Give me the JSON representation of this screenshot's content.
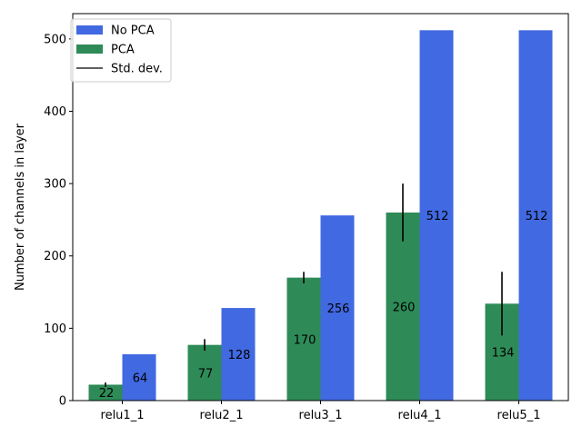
{
  "chart_data": {
    "type": "bar",
    "title": "",
    "xlabel": "",
    "ylabel": "Number of channels in layer",
    "categories": [
      "relu1_1",
      "relu2_1",
      "relu3_1",
      "relu4_1",
      "relu5_1"
    ],
    "ylim": [
      0,
      535
    ],
    "yticks": [
      0,
      100,
      200,
      300,
      400,
      500
    ],
    "grid": false,
    "legend_placement": "top-left",
    "series": [
      {
        "name": "PCA",
        "color": "#2e8b57",
        "values": [
          22,
          77,
          170,
          260,
          134
        ],
        "std_dev": [
          3,
          8,
          8,
          40,
          44
        ],
        "labels": [
          "22",
          "77",
          "170",
          "260",
          "134"
        ]
      },
      {
        "name": "No PCA",
        "color": "#4169e1",
        "values": [
          64,
          128,
          256,
          512,
          512
        ],
        "labels": [
          "64",
          "128",
          "256",
          "512",
          "512"
        ]
      }
    ],
    "legend": [
      {
        "label": "No PCA",
        "kind": "patch",
        "color": "#4169e1"
      },
      {
        "label": "PCA",
        "kind": "patch",
        "color": "#2e8b57"
      },
      {
        "label": "Std. dev.",
        "kind": "line",
        "color": "#000000"
      }
    ]
  }
}
